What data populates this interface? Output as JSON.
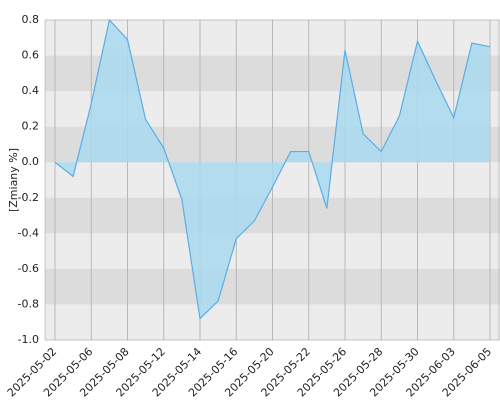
{
  "chart_data": {
    "type": "area",
    "y_label": "[Zmiany %]",
    "categories": [
      "2025-05-02",
      null,
      "2025-05-06",
      null,
      "2025-05-08",
      null,
      "2025-05-12",
      null,
      "2025-05-14",
      null,
      "2025-05-16",
      null,
      "2025-05-20",
      null,
      "2025-05-22",
      null,
      "2025-05-26",
      null,
      "2025-05-28",
      null,
      "2025-05-30",
      null,
      "2025-06-03",
      null,
      "2025-06-05"
    ],
    "values": [
      0.0,
      -0.08,
      0.33,
      0.8,
      0.69,
      0.24,
      0.08,
      -0.21,
      -0.88,
      -0.78,
      -0.43,
      -0.33,
      -0.14,
      0.06,
      0.06,
      -0.26,
      0.63,
      0.16,
      0.06,
      0.26,
      0.68,
      0.46,
      0.25,
      0.67,
      0.65
    ],
    "color": "#5aaee6",
    "fill": "#a9d9ee",
    "ylim": [
      -1.0,
      0.8
    ],
    "yticks": [
      {
        "value": -1.0,
        "label": "-1.0"
      },
      -0.8,
      -0.6,
      -0.4,
      -0.2,
      {
        "value": 0,
        "label": "0.0"
      },
      0.2,
      0.4,
      0.6,
      0.8
    ],
    "grid": true
  }
}
